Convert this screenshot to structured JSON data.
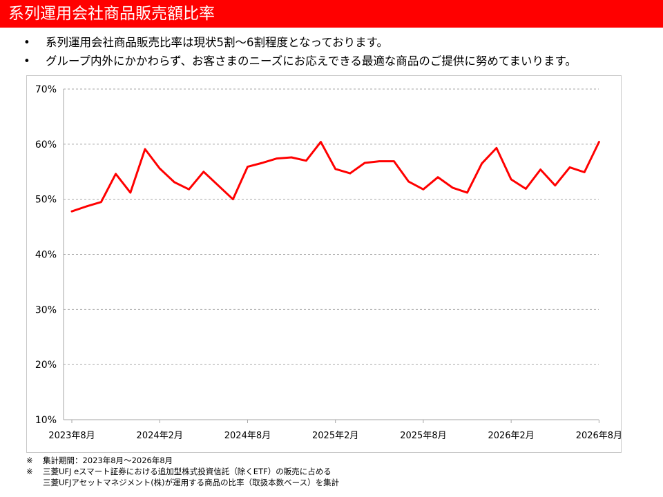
{
  "header": {
    "title": "系列運用会社商品販売額比率"
  },
  "bullets": [
    "系列運用会社商品販売比率は現状5割～6割程度となっております。",
    "グループ内外にかかわらず、お客さまのニーズにお応えできる最適な商品のご提供に努めてまいります。"
  ],
  "bullet_symbol": "•",
  "notes": {
    "mark": "※",
    "line1": "集計期間：2023年8月～2026年8月",
    "line2a": "三菱UFJ eスマート証券における追加型株式投資信託（除くETF）の販売に占める",
    "line2b": "三菱UFJアセットマネジメント(株)が運用する商品の比率（取扱本数ベース）を集計"
  },
  "colors": {
    "accent": "#ff0000",
    "line": "#ff0000",
    "grid": "#a6a6a6",
    "axis": "#a6a6a6"
  },
  "chart_data": {
    "type": "line",
    "title": "",
    "xlabel": "",
    "ylabel": "",
    "ylim": [
      10,
      70
    ],
    "y_ticks": [
      "10%",
      "20%",
      "30%",
      "40%",
      "50%",
      "60%",
      "70%"
    ],
    "y_tick_values": [
      10,
      20,
      30,
      40,
      50,
      60,
      70
    ],
    "grid": "horizontal-dashed",
    "legend": "none",
    "x_tick_labels": [
      "2023年8月",
      "2024年2月",
      "2024年8月",
      "2025年2月",
      "2025年8月",
      "2026年2月",
      "2026年8月"
    ],
    "x": [
      "2023年8月",
      "2023年9月",
      "2023年10月",
      "2023年11月",
      "2023年12月",
      "2024年1月",
      "2024年2月",
      "2024年3月",
      "2024年4月",
      "2024年5月",
      "2024年6月",
      "2024年7月",
      "2024年8月",
      "2024年9月",
      "2024年10月",
      "2024年11月",
      "2024年12月",
      "2025年1月",
      "2025年2月",
      "2025年3月",
      "2025年4月",
      "2025年5月",
      "2025年6月",
      "2025年7月",
      "2025年8月",
      "2025年9月",
      "2025年10月",
      "2025年11月",
      "2025年12月",
      "2026年1月",
      "2026年2月",
      "2026年3月",
      "2026年4月",
      "2026年5月",
      "2026年6月",
      "2026年7月",
      "2026年8月"
    ],
    "values": [
      47.8,
      48.7,
      49.5,
      54.6,
      51.2,
      59.1,
      55.6,
      53.1,
      51.8,
      55.0,
      52.5,
      50.0,
      55.9,
      56.6,
      57.4,
      57.6,
      57.0,
      60.4,
      55.5,
      54.7,
      56.6,
      56.9,
      56.9,
      53.2,
      51.8,
      54.0,
      52.1,
      51.2,
      56.5,
      59.3,
      53.6,
      51.9,
      55.4,
      52.5,
      55.8,
      54.9,
      60.4
    ]
  }
}
